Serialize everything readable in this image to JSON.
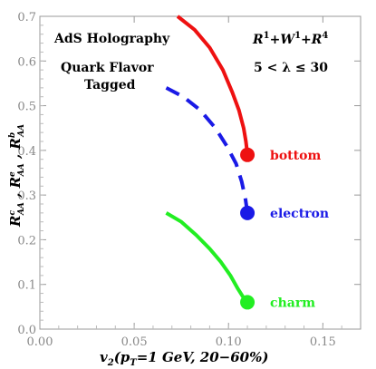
{
  "chart_data": {
    "type": "line",
    "xlabel": "v2(pT=1 GeV, 20−60%)",
    "ylabel": "ReAA , ReAA , RbAA",
    "xlim": [
      0.0,
      0.17
    ],
    "ylim": [
      0.0,
      0.7
    ],
    "x_ticks": [
      "0.00",
      "0.05",
      "0.10",
      "0.15"
    ],
    "y_ticks": [
      "0.0",
      "0.1",
      "0.2",
      "0.3",
      "0.4",
      "0.5",
      "0.6",
      "0.7"
    ],
    "annotations": {
      "top_left": "AdS Holography",
      "flavor_line1": "Quark Flavor",
      "flavor_line2": "Tagged",
      "model": "R1+W1+R4",
      "lambda_range": "5 < λ ≤ 30"
    },
    "series": [
      {
        "name": "bottom",
        "color": "#ee1111",
        "dash": "solid",
        "x": [
          0.073,
          0.082,
          0.09,
          0.097,
          0.102,
          0.1055,
          0.108,
          0.1092,
          0.1098,
          0.11
        ],
        "y": [
          0.7,
          0.67,
          0.63,
          0.58,
          0.53,
          0.49,
          0.45,
          0.42,
          0.4,
          0.39
        ],
        "endpoint": [
          0.11,
          0.39
        ]
      },
      {
        "name": "electron",
        "color": "#1a1ae6",
        "dash": "dashed",
        "x": [
          0.067,
          0.076,
          0.085,
          0.093,
          0.099,
          0.104,
          0.107,
          0.109,
          0.11
        ],
        "y": [
          0.54,
          0.52,
          0.49,
          0.45,
          0.41,
          0.37,
          0.33,
          0.29,
          0.26
        ],
        "endpoint": [
          0.11,
          0.26
        ]
      },
      {
        "name": "charm",
        "color": "#22ee22",
        "dash": "solid",
        "x": [
          0.067,
          0.075,
          0.083,
          0.09,
          0.096,
          0.101,
          0.105,
          0.108,
          0.11
        ],
        "y": [
          0.26,
          0.24,
          0.21,
          0.18,
          0.15,
          0.12,
          0.09,
          0.07,
          0.06
        ],
        "endpoint": [
          0.11,
          0.06
        ]
      }
    ]
  }
}
